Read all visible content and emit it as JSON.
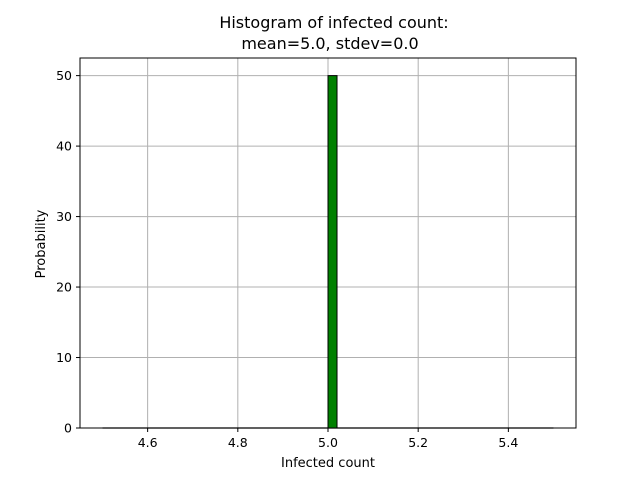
{
  "chart_data": {
    "type": "bar",
    "title_lines": [
      "Histogram of infected count:",
      "mean=5.0, stdev=0.0"
    ],
    "xlabel": "Infected count",
    "ylabel": "Probability",
    "xlim": [
      4.45,
      5.55
    ],
    "ylim": [
      0,
      52.5
    ],
    "x_ticks": [
      4.6,
      4.8,
      5.0,
      5.2,
      5.4
    ],
    "x_tick_labels": [
      "4.6",
      "4.8",
      "5.0",
      "5.2",
      "5.4"
    ],
    "y_ticks": [
      0,
      10,
      20,
      30,
      40,
      50
    ],
    "y_tick_labels": [
      "0",
      "10",
      "20",
      "30",
      "40",
      "50"
    ],
    "grid": true,
    "bins": {
      "start": 4.5,
      "end": 5.5,
      "count": 50
    },
    "series": [
      {
        "bars": [
          {
            "x_start": 5.0,
            "x_end": 5.02,
            "value": 50.0
          }
        ],
        "color": "#008000",
        "edgecolor": "#000000"
      }
    ]
  }
}
